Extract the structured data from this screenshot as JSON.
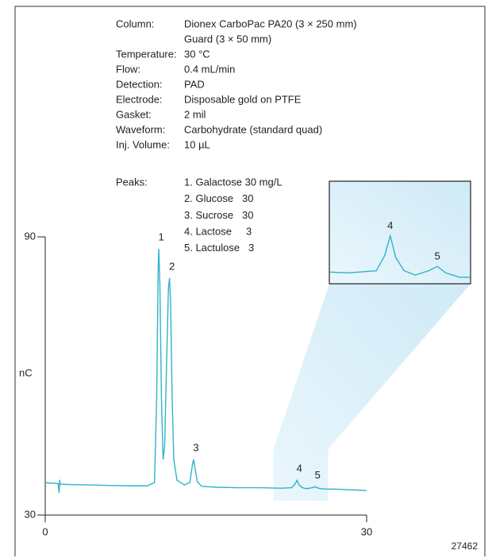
{
  "chart_data": {
    "type": "line",
    "conditions": [
      {
        "label": "Column:",
        "lines": [
          "Dionex CarboPac PA20 (3 × 250 mm)",
          "Guard (3 × 50 mm)"
        ]
      },
      {
        "label": "Temperature:",
        "lines": [
          "30 °C"
        ]
      },
      {
        "label": "Flow:",
        "lines": [
          "0.4 mL/min"
        ]
      },
      {
        "label": "Detection:",
        "lines": [
          "PAD"
        ]
      },
      {
        "label": "Electrode:",
        "lines": [
          "Disposable gold on PTFE"
        ]
      },
      {
        "label": "Gasket:",
        "lines": [
          "2 mil"
        ]
      },
      {
        "label": "Waveform:",
        "lines": [
          "Carbohydrate (standard quad)"
        ]
      },
      {
        "label": "Inj. Volume:",
        "lines": [
          "10 µL"
        ]
      }
    ],
    "peaks": {
      "label": "Peaks:",
      "lines": [
        "1. Galactose 30 mg/L",
        "2. Glucose   30",
        "3. Sucrose   30",
        "4. Lactose     3",
        "5. Lactulose   3"
      ]
    },
    "y_label": "nC",
    "figure_id": "27462",
    "color": "#2fb5c8",
    "x": [
      0,
      0.5,
      1.2,
      1.3,
      1.35,
      1.4,
      1.5,
      2,
      4,
      6,
      8,
      9.5,
      10.2,
      10.4,
      10.55,
      10.6,
      10.7,
      10.85,
      11.0,
      11.15,
      11.3,
      11.5,
      11.6,
      11.7,
      11.85,
      12.0,
      12.3,
      13.0,
      13.5,
      13.75,
      13.85,
      13.95,
      14.2,
      14.6,
      16,
      18,
      20,
      22,
      23.0,
      23.3,
      23.5,
      23.7,
      24.0,
      24.4,
      24.9,
      25.2,
      25.5,
      26,
      27,
      28,
      29,
      30
    ],
    "values": [
      37.0,
      36.9,
      36.8,
      34.8,
      37.6,
      36.6,
      36.7,
      36.6,
      36.5,
      36.4,
      36.3,
      36.3,
      37.0,
      55,
      84,
      87.4,
      80,
      55,
      42,
      45,
      60,
      79,
      81.1,
      76,
      55,
      42,
      37.5,
      36.5,
      37.0,
      41,
      42,
      40.5,
      37.2,
      36.2,
      36.0,
      35.9,
      35.9,
      35.8,
      35.9,
      36.6,
      37.5,
      36.5,
      35.9,
      35.7,
      35.9,
      36.1,
      35.8,
      35.6,
      35.6,
      35.5,
      35.4,
      35.3
    ],
    "annotations": [
      {
        "text": "1",
        "x": 10.6
      },
      {
        "text": "2",
        "x": 11.6
      },
      {
        "text": "3",
        "x": 13.85
      },
      {
        "text": "4",
        "x": 23.5
      },
      {
        "text": "5",
        "x": 25.2
      }
    ],
    "xlim": [
      0,
      30
    ],
    "xticks": [
      0,
      30
    ],
    "ylim": [
      30,
      90
    ],
    "yticks": [
      30,
      90
    ],
    "inset": {
      "xlim": [
        21.3,
        26.4
      ],
      "ylim": [
        35.3,
        40
      ]
    }
  }
}
